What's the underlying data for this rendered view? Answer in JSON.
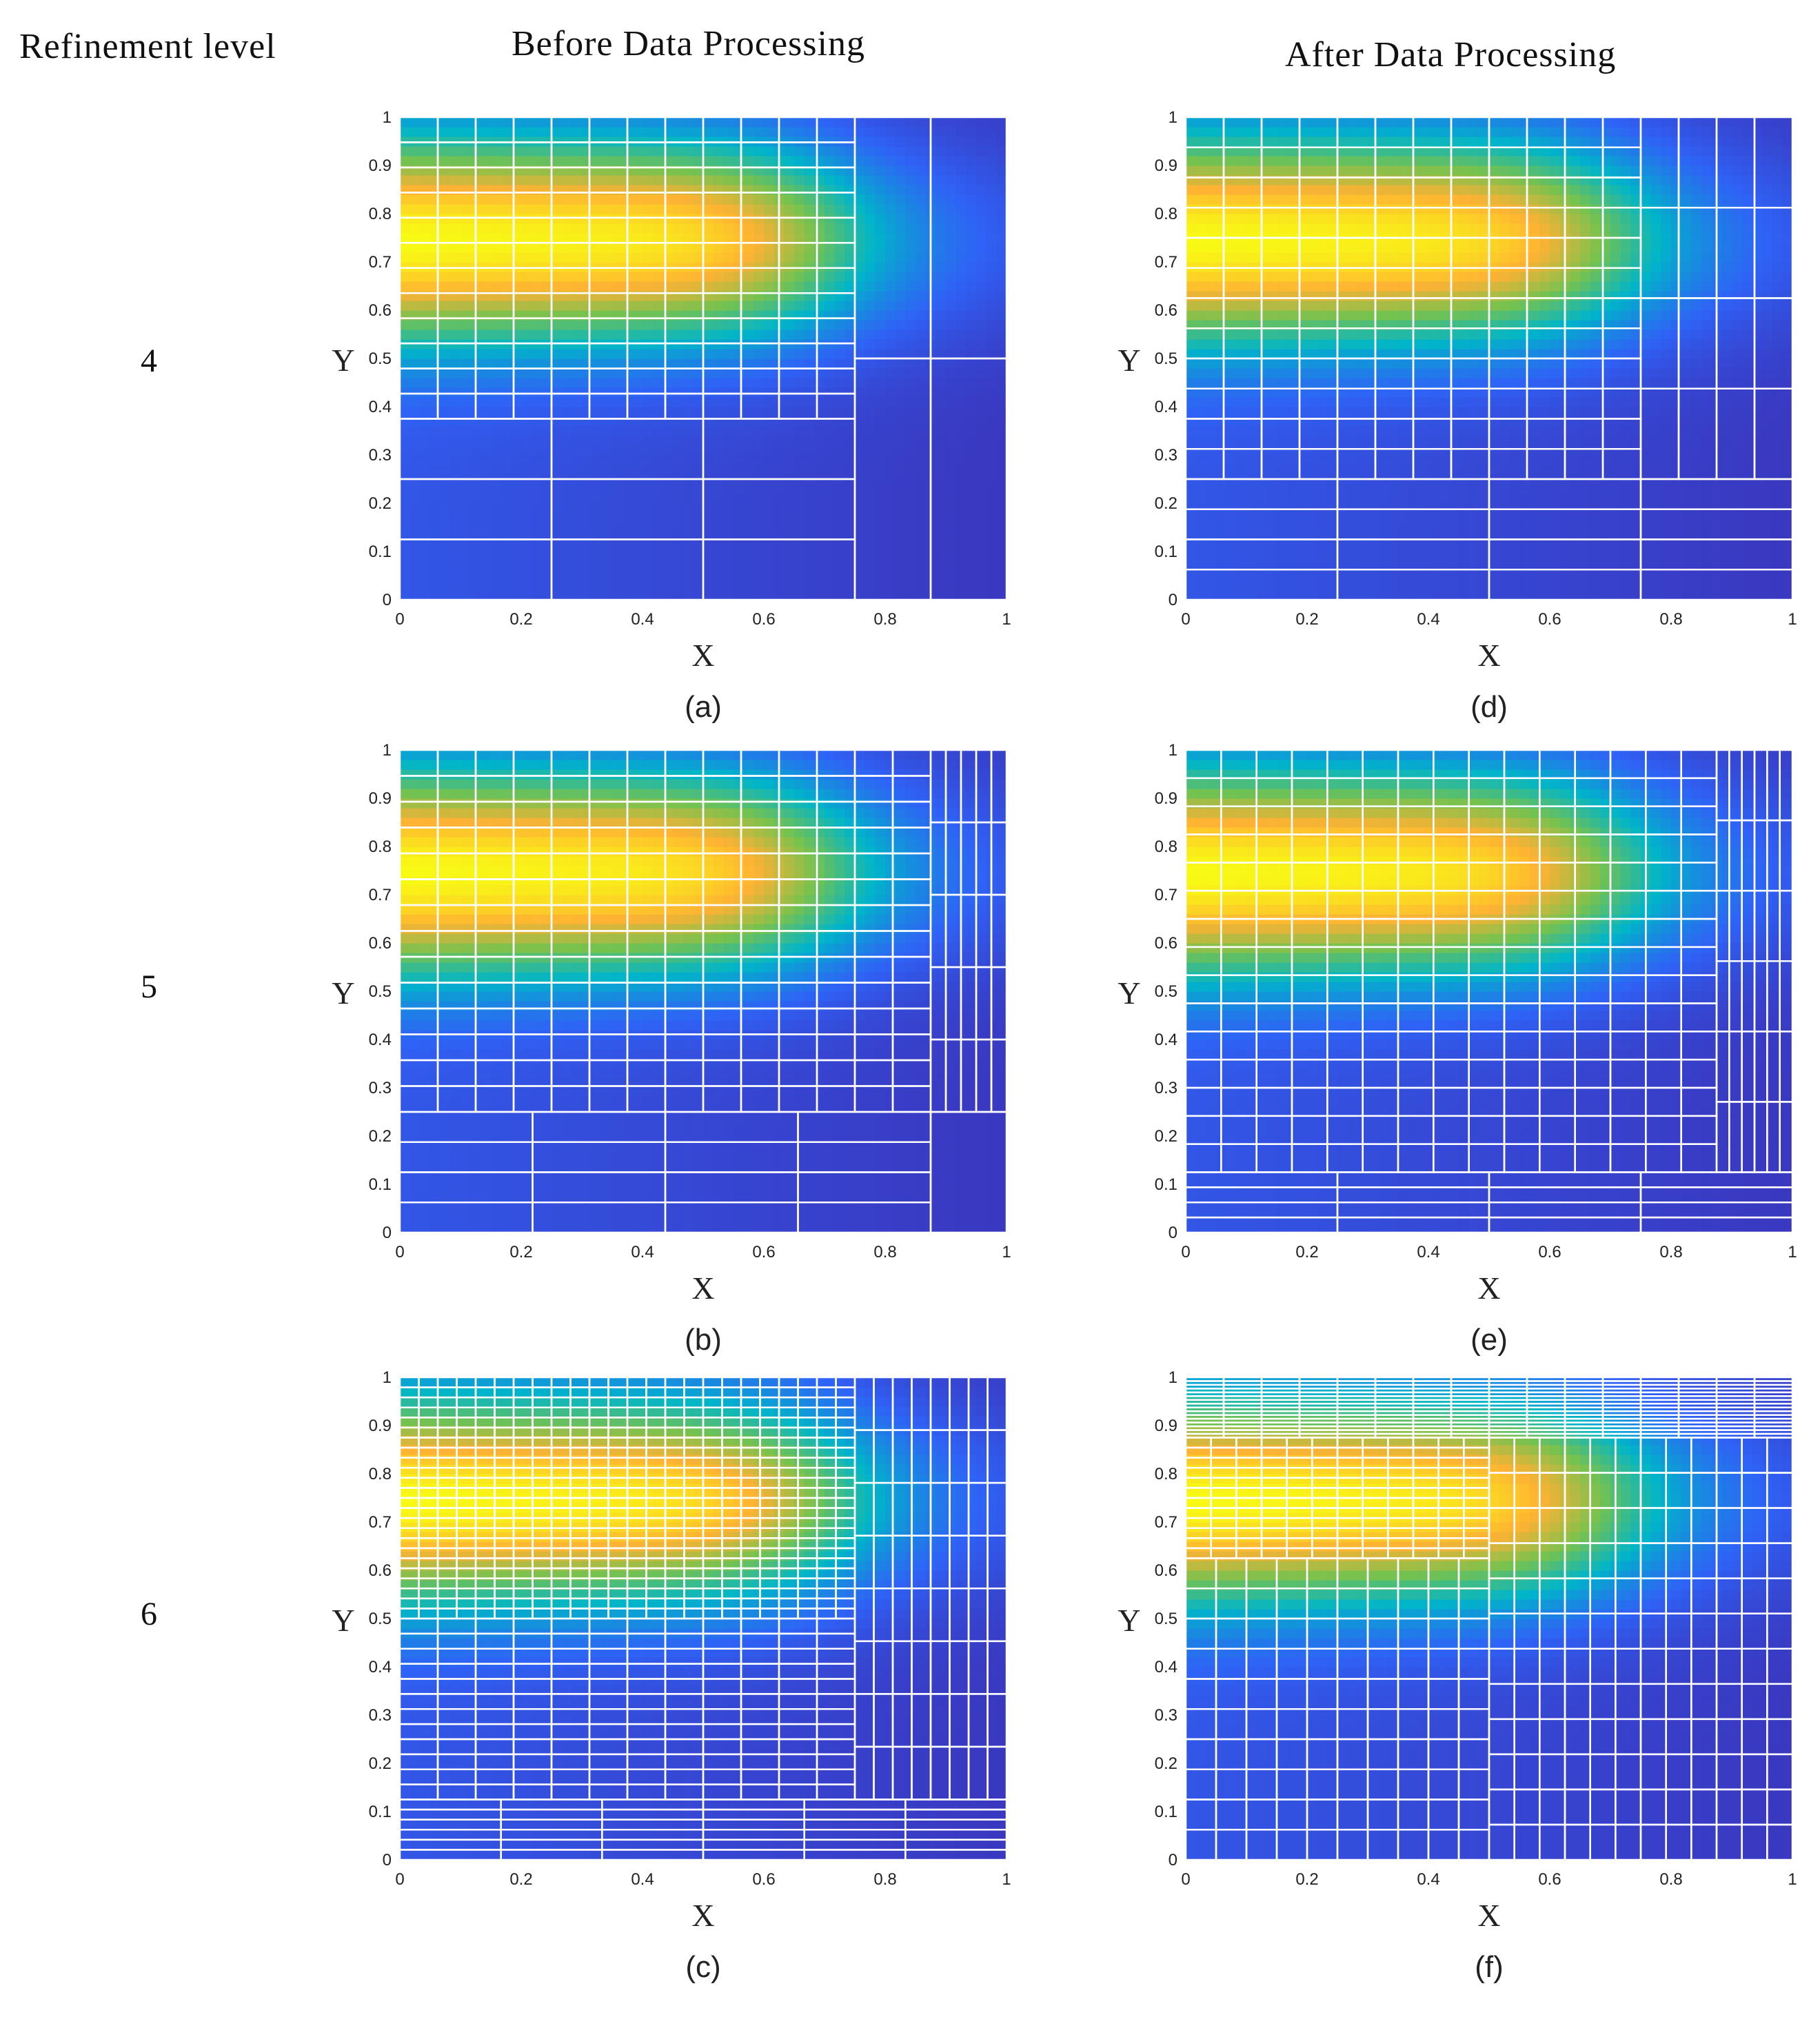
{
  "headers": {
    "left": "Refinement level",
    "middle": "Before Data Processing",
    "right": "After Data Processing"
  },
  "levels": [
    "4",
    "5",
    "6"
  ],
  "colormap": [
    "#3e26a8",
    "#2f62f6",
    "#00b5c9",
    "#75c24f",
    "#ffb233",
    "#f8fa14"
  ],
  "chart_data": [
    {
      "type": "heatmap",
      "caption": "(a)",
      "level": 4,
      "stage": "Before Data Processing",
      "xlabel": "X",
      "ylabel": "Y",
      "xlim": [
        0,
        1
      ],
      "ylim": [
        0,
        1
      ],
      "xticks": [
        "0",
        "0.2",
        "0.4",
        "0.6",
        "0.8",
        "1"
      ],
      "yticks": [
        "0",
        "0.1",
        "0.2",
        "0.3",
        "0.4",
        "0.5",
        "0.6",
        "0.7",
        "0.8",
        "0.9",
        "1"
      ]
    },
    {
      "type": "heatmap",
      "caption": "(b)",
      "level": 5,
      "stage": "Before Data Processing",
      "xlabel": "X",
      "ylabel": "Y",
      "xlim": [
        0,
        1
      ],
      "ylim": [
        0,
        1
      ],
      "xticks": [
        "0",
        "0.2",
        "0.4",
        "0.6",
        "0.8",
        "1"
      ],
      "yticks": [
        "0",
        "0.1",
        "0.2",
        "0.3",
        "0.4",
        "0.5",
        "0.6",
        "0.7",
        "0.8",
        "0.9",
        "1"
      ]
    },
    {
      "type": "heatmap",
      "caption": "(c)",
      "level": 6,
      "stage": "Before Data Processing",
      "xlabel": "X",
      "ylabel": "Y",
      "xlim": [
        0,
        1
      ],
      "ylim": [
        0,
        1
      ],
      "xticks": [
        "0",
        "0.2",
        "0.4",
        "0.6",
        "0.8",
        "1"
      ],
      "yticks": [
        "0",
        "0.1",
        "0.2",
        "0.3",
        "0.4",
        "0.5",
        "0.6",
        "0.7",
        "0.8",
        "0.9",
        "1"
      ]
    },
    {
      "type": "heatmap",
      "caption": "(d)",
      "level": 4,
      "stage": "After Data Processing",
      "xlabel": "X",
      "ylabel": "Y",
      "xlim": [
        0,
        1
      ],
      "ylim": [
        0,
        1
      ],
      "xticks": [
        "0",
        "0.2",
        "0.4",
        "0.6",
        "0.8",
        "1"
      ],
      "yticks": [
        "0",
        "0.1",
        "0.2",
        "0.3",
        "0.4",
        "0.5",
        "0.6",
        "0.7",
        "0.8",
        "0.9",
        "1"
      ]
    },
    {
      "type": "heatmap",
      "caption": "(e)",
      "level": 5,
      "stage": "After Data Processing",
      "xlabel": "X",
      "ylabel": "Y",
      "xlim": [
        0,
        1
      ],
      "ylim": [
        0,
        1
      ],
      "xticks": [
        "0",
        "0.2",
        "0.4",
        "0.6",
        "0.8",
        "1"
      ],
      "yticks": [
        "0",
        "0.1",
        "0.2",
        "0.3",
        "0.4",
        "0.5",
        "0.6",
        "0.7",
        "0.8",
        "0.9",
        "1"
      ]
    },
    {
      "type": "heatmap",
      "caption": "(f)",
      "level": 6,
      "stage": "After Data Processing",
      "xlabel": "X",
      "ylabel": "Y",
      "xlim": [
        0,
        1
      ],
      "ylim": [
        0,
        1
      ],
      "xticks": [
        "0",
        "0.2",
        "0.4",
        "0.6",
        "0.8",
        "1"
      ],
      "yticks": [
        "0",
        "0.1",
        "0.2",
        "0.3",
        "0.4",
        "0.5",
        "0.6",
        "0.7",
        "0.8",
        "0.9",
        "1"
      ]
    }
  ]
}
